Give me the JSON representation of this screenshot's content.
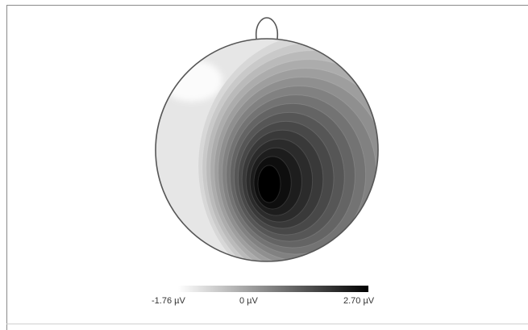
{
  "chart_data": {
    "type": "heatmap",
    "title": "",
    "colorbar": {
      "min_label": "-1.76 µV",
      "mid_label": "0 µV",
      "max_label": "2.70 µV",
      "min": -1.76,
      "mid": 0,
      "max": 2.7,
      "unit": "µV",
      "gradient": [
        "#ffffff",
        "#000000"
      ]
    },
    "extrema": {
      "minimum": {
        "value": -1.76,
        "location": "left-frontal"
      },
      "maximum": {
        "value": 2.7,
        "location": "central-posterior"
      }
    },
    "head_outline_color": "#555555"
  }
}
